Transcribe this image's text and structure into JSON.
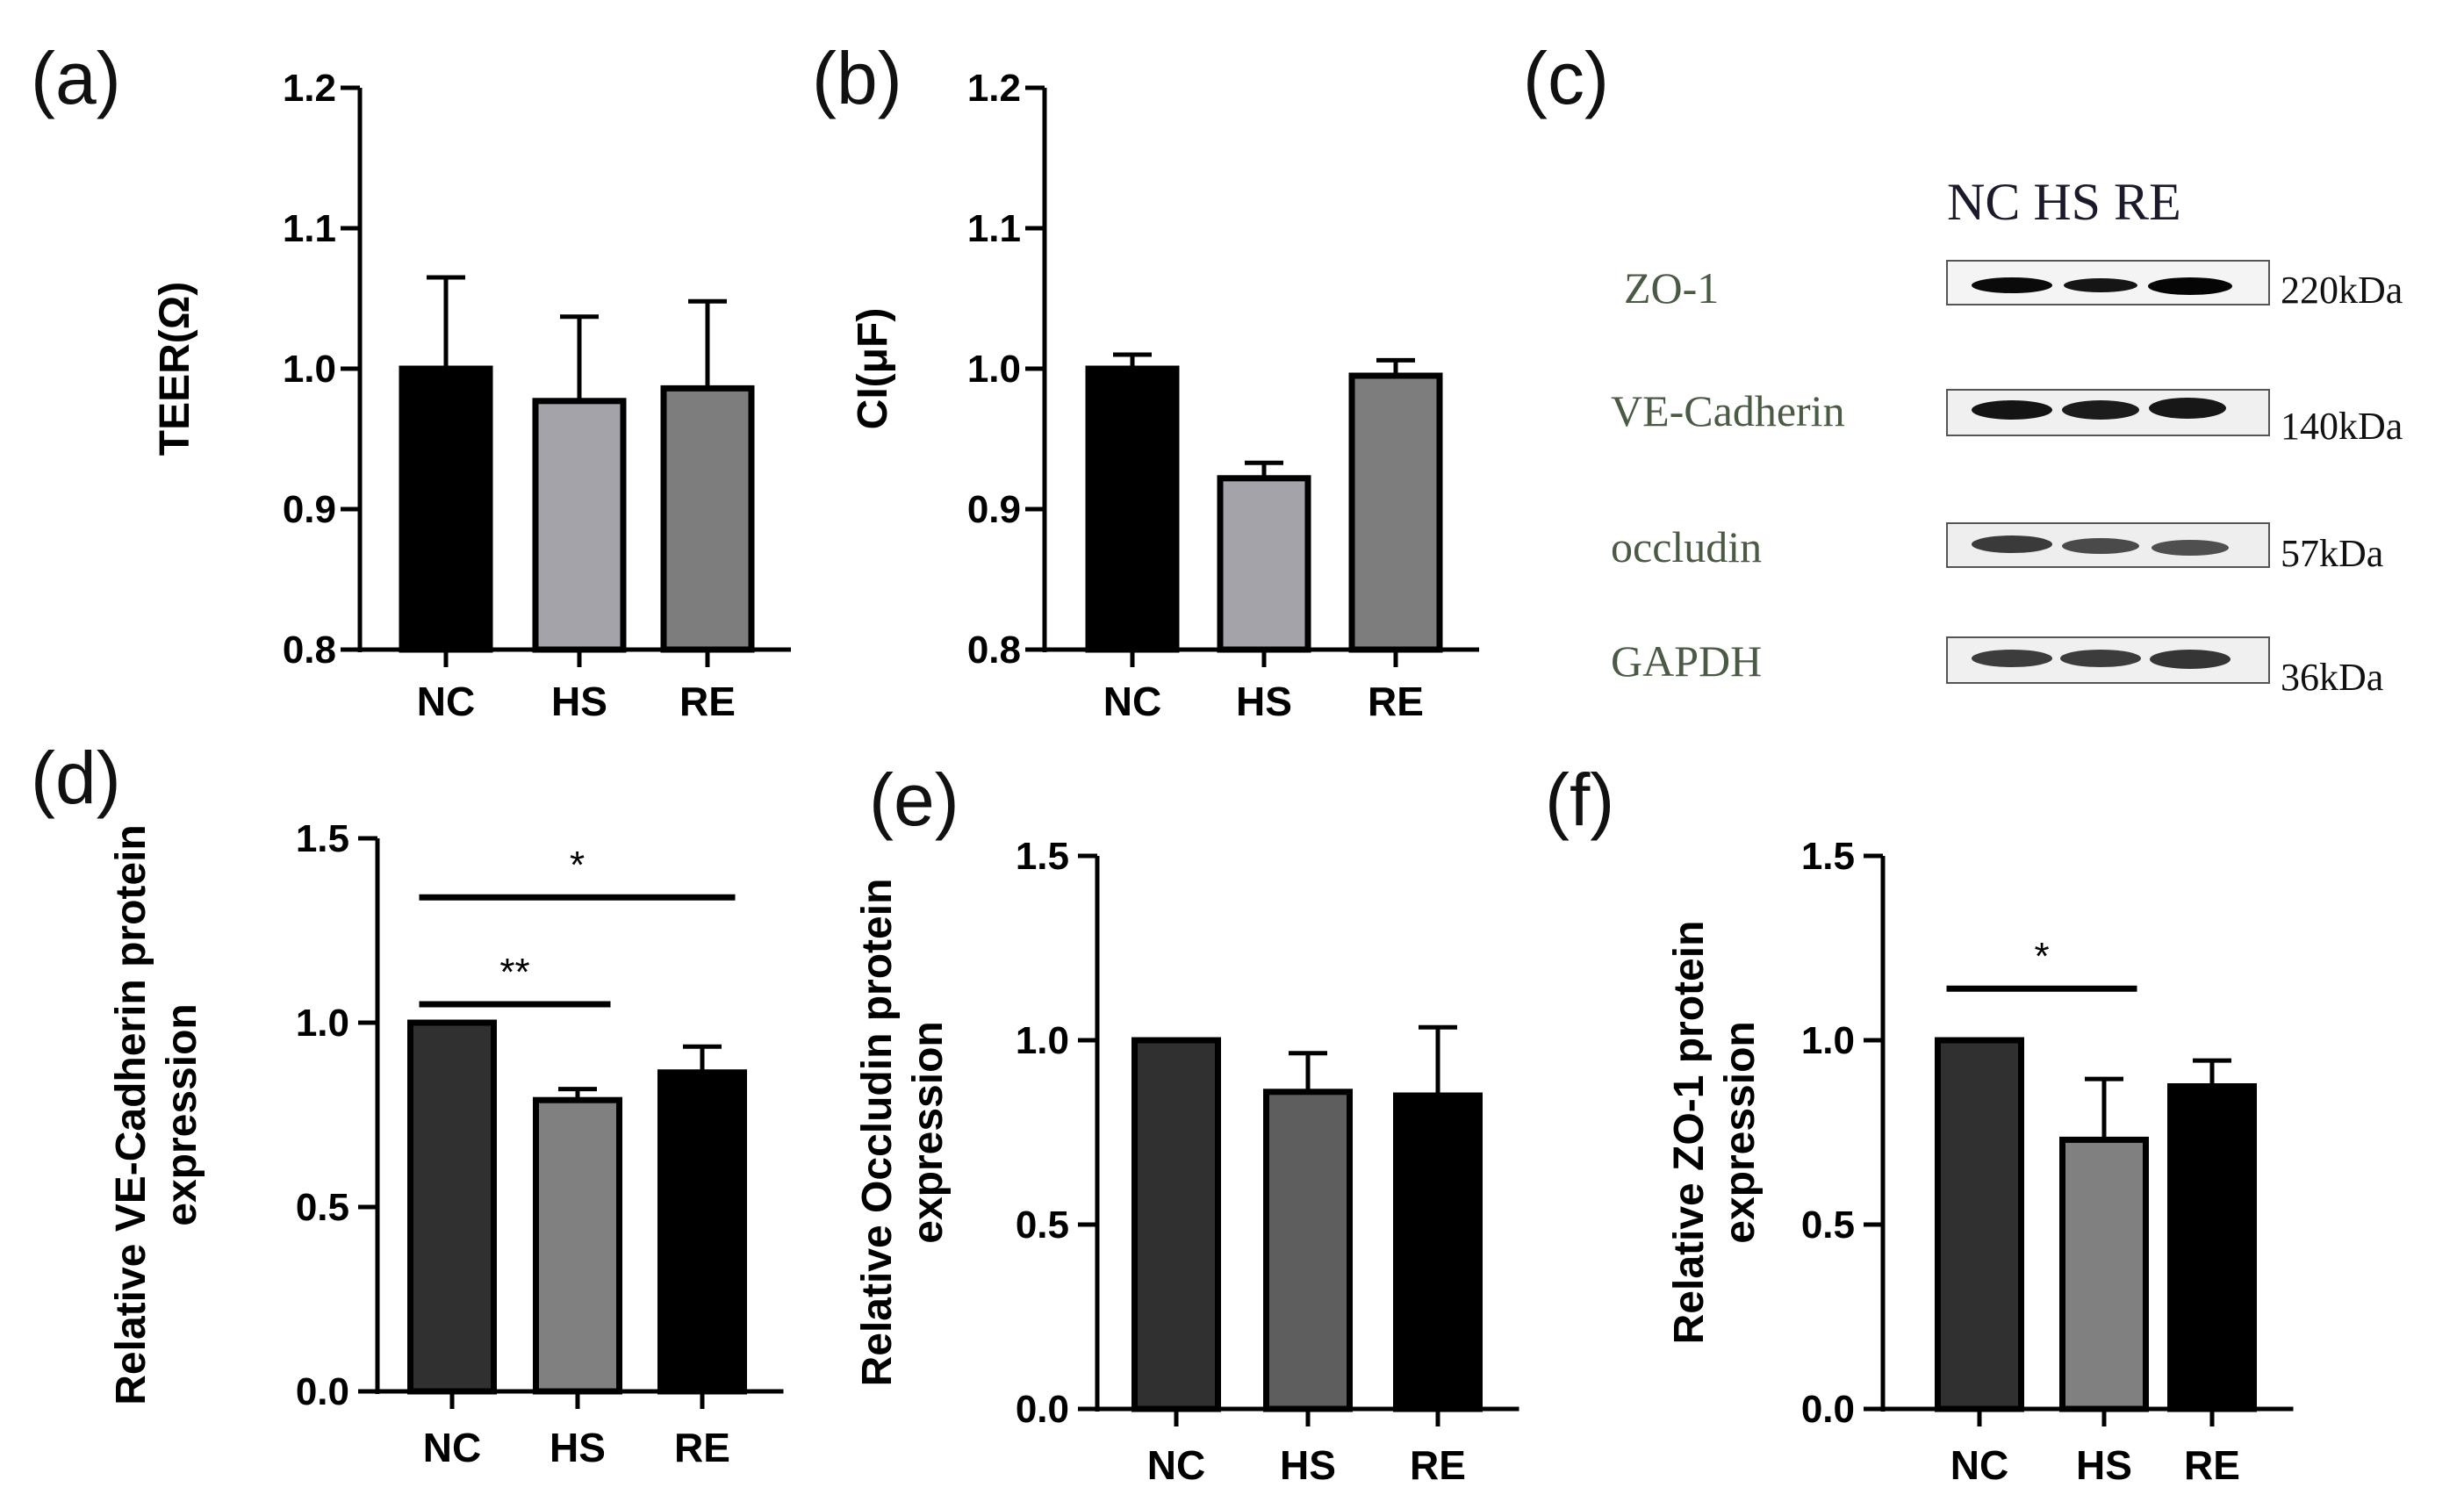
{
  "panels": [
    {
      "id": "a",
      "label": "(a)",
      "chart_data": {
        "type": "bar",
        "categories": [
          "NC",
          "HS",
          "RE"
        ],
        "values": [
          1.0,
          0.977,
          0.986
        ],
        "errors": [
          0.065,
          0.06,
          0.062
        ],
        "bar_colors": [
          "#000000",
          "#a3a3a9",
          "#7d7d7d"
        ],
        "ylabel": "TEER(Ω)",
        "ylim": [
          0.8,
          1.2
        ],
        "yticks": [
          "0.8",
          "0.9",
          "1.0",
          "1.1",
          "1.2"
        ],
        "significance": []
      }
    },
    {
      "id": "b",
      "label": "(b)",
      "chart_data": {
        "type": "bar",
        "categories": [
          "NC",
          "HS",
          "RE"
        ],
        "values": [
          1.0,
          0.922,
          0.995
        ],
        "errors": [
          0.01,
          0.011,
          0.011
        ],
        "bar_colors": [
          "#000000",
          "#a3a3a9",
          "#7d7d7d"
        ],
        "ylabel": "CI(μF)",
        "ylim": [
          0.8,
          1.2
        ],
        "yticks": [
          "0.8",
          "0.9",
          "1.0",
          "1.1",
          "1.2"
        ],
        "significance": []
      }
    },
    {
      "id": "d",
      "label": "(d)",
      "chart_data": {
        "type": "bar",
        "categories": [
          "NC",
          "HS",
          "RE"
        ],
        "values": [
          1.0,
          0.79,
          0.865
        ],
        "errors": [
          0.0,
          0.03,
          0.07
        ],
        "bar_colors": [
          "#303030",
          "#808080",
          "#000000"
        ],
        "ylabel_lines": [
          "Relative VE-Cadherin protein",
          "expression"
        ],
        "ylim": [
          0.0,
          1.5
        ],
        "yticks": [
          "0.0",
          "0.5",
          "1.0",
          "1.5"
        ],
        "significance": [
          {
            "from": 0,
            "to": 1,
            "y": 1.05,
            "text": "**"
          },
          {
            "from": 0,
            "to": 2,
            "y": 1.34,
            "text": "*"
          }
        ]
      }
    },
    {
      "id": "e",
      "label": "(e)",
      "chart_data": {
        "type": "bar",
        "categories": [
          "NC",
          "HS",
          "RE"
        ],
        "values": [
          1.0,
          0.86,
          0.85
        ],
        "errors": [
          0.0,
          0.105,
          0.185
        ],
        "bar_colors": [
          "#303030",
          "#5e5e5e",
          "#000000"
        ],
        "ylabel_lines": [
          "Relative Occludin protein",
          "expression"
        ],
        "ylim": [
          0.0,
          1.5
        ],
        "yticks": [
          "0.0",
          "0.5",
          "1.0",
          "1.5"
        ],
        "significance": []
      }
    },
    {
      "id": "f",
      "label": "(f)",
      "chart_data": {
        "type": "bar",
        "categories": [
          "NC",
          "HS",
          "RE"
        ],
        "values": [
          1.0,
          0.73,
          0.875
        ],
        "errors": [
          0.0,
          0.165,
          0.07
        ],
        "bar_colors": [
          "#303030",
          "#808080",
          "#000000"
        ],
        "ylabel_lines": [
          "Relative ZO-1 protein",
          "expression"
        ],
        "ylim": [
          0.0,
          1.5
        ],
        "yticks": [
          "0.0",
          "0.5",
          "1.0",
          "1.5"
        ],
        "significance": [
          {
            "from": 0,
            "to": 1,
            "y": 1.14,
            "text": "*"
          }
        ]
      }
    }
  ],
  "blot": {
    "label": "(c)",
    "lanes": [
      "NC",
      "HS",
      "RE"
    ],
    "lane_header": "NC HS RE",
    "rows": [
      {
        "protein": "ZO-1",
        "size": "220kDa"
      },
      {
        "protein": "VE-Cadherin",
        "size": "140kDa"
      },
      {
        "protein": "occludin",
        "size": "57kDa"
      },
      {
        "protein": "GAPDH",
        "size": "36kDa"
      }
    ],
    "label_color": "#4a5a44"
  }
}
